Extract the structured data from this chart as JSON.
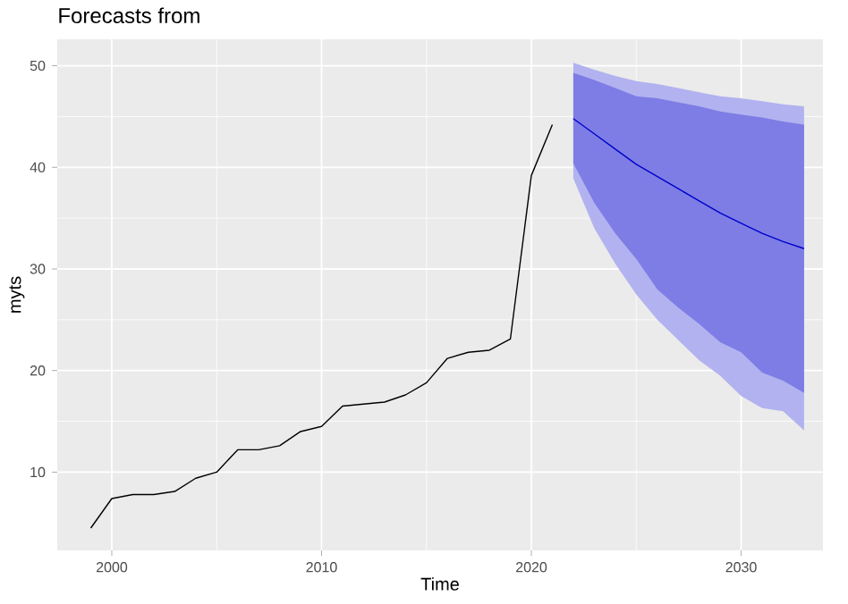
{
  "chart_data": {
    "type": "line",
    "title": "Forecasts from",
    "xlabel": "Time",
    "ylabel": "myts",
    "xlim": [
      1997.4,
      2033.9
    ],
    "ylim": [
      2.3,
      52.6
    ],
    "xticks": [
      2000,
      2010,
      2020,
      2030
    ],
    "yticks": [
      10,
      20,
      30,
      40,
      50
    ],
    "grid": true,
    "series": [
      {
        "color": "#000000",
        "x": [
          1999,
          2000,
          2001,
          2002,
          2003,
          2004,
          2005,
          2006,
          2007,
          2008,
          2009,
          2010,
          2011,
          2012,
          2013,
          2014,
          2015,
          2016,
          2017,
          2018,
          2019,
          2020,
          2021
        ],
        "values": [
          4.5,
          7.4,
          7.8,
          7.8,
          8.1,
          9.4,
          10.0,
          12.2,
          12.2,
          12.6,
          14.0,
          14.5,
          16.5,
          16.7,
          16.9,
          17.6,
          18.8,
          21.2,
          21.8,
          22.0,
          23.1,
          39.2,
          44.2
        ]
      },
      {
        "color": "#0000cc",
        "x": [
          2022,
          2023,
          2024,
          2025,
          2026,
          2027,
          2028,
          2029,
          2030,
          2031,
          2032,
          2033
        ],
        "values": [
          null,
          null,
          null,
          null,
          null,
          null,
          null,
          null,
          null,
          null,
          null,
          null
        ],
        "lower": [
          38.9,
          34.0,
          30.5,
          27.5,
          25.0,
          23.0,
          21.0,
          19.5,
          17.5,
          16.3,
          16.0,
          14.1
        ],
        "upper": [
          50.3,
          49.6,
          49.0,
          48.5,
          48.2,
          47.8,
          47.4,
          47.0,
          46.8,
          46.5,
          46.2,
          46.0
        ]
      },
      {
        "color": "#0000cc",
        "x": [
          2022,
          2023,
          2024,
          2025,
          2026,
          2027,
          2028,
          2029,
          2030,
          2031,
          2032,
          2033
        ],
        "values": [
          44.8,
          43.3,
          41.8,
          40.3,
          39.1,
          37.9,
          36.7,
          35.5,
          34.5,
          33.5,
          32.7,
          32.0
        ],
        "lower": [
          40.4,
          36.5,
          33.5,
          31.0,
          28.0,
          26.2,
          24.6,
          22.8,
          21.8,
          19.8,
          19.0,
          17.8
        ],
        "upper": [
          49.3,
          48.6,
          47.8,
          47.0,
          46.8,
          46.4,
          46.0,
          45.5,
          45.2,
          44.9,
          44.5,
          44.2
        ]
      }
    ]
  }
}
